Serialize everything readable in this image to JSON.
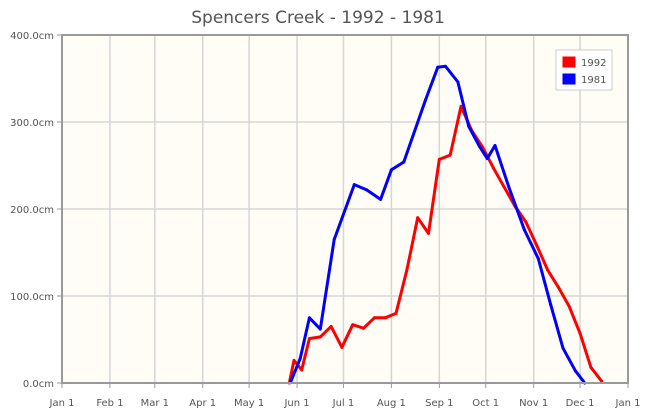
{
  "chart_data": {
    "type": "line",
    "title": "Spencers Creek - 1992 - 1981",
    "xlabel": "",
    "ylabel": "",
    "x_ticks": [
      "Jan 1",
      "Feb 1",
      "Mar 1",
      "Apr 1",
      "May 1",
      "Jun 1",
      "Jul 1",
      "Aug 1",
      "Sep 1",
      "Oct 1",
      "Nov 1",
      "Dec 1",
      "Jan 1"
    ],
    "y_ticks": [
      "0.0cm",
      "100.0cm",
      "200.0cm",
      "300.0cm",
      "400.0cm"
    ],
    "ylim": [
      0,
      400
    ],
    "xlim_days": [
      0,
      366
    ],
    "grid": true,
    "legend_position": "top-right",
    "series": [
      {
        "name": "1992",
        "color": "#ff0000",
        "points": [
          [
            "May 28",
            0
          ],
          [
            "May 31",
            26
          ],
          [
            "Jun 5",
            15
          ],
          [
            "Jun 10",
            51
          ],
          [
            "Jun 17",
            53
          ],
          [
            "Jun 24",
            65
          ],
          [
            "Jul 1",
            41
          ],
          [
            "Jul 8",
            67
          ],
          [
            "Jul 15",
            63
          ],
          [
            "Jul 22",
            75
          ],
          [
            "Jul 29",
            75
          ],
          [
            "Aug 5",
            80
          ],
          [
            "Aug 12",
            130
          ],
          [
            "Aug 19",
            190
          ],
          [
            "Aug 26",
            172
          ],
          [
            "Sep 2",
            257
          ],
          [
            "Sep 9",
            262
          ],
          [
            "Sep 16",
            318
          ],
          [
            "Sep 23",
            290
          ],
          [
            "Sep 30",
            271
          ],
          [
            "Oct 7",
            247
          ],
          [
            "Oct 14",
            225
          ],
          [
            "Oct 21",
            203
          ],
          [
            "Oct 28",
            185
          ],
          [
            "Nov 4",
            158
          ],
          [
            "Nov 11",
            130
          ],
          [
            "Nov 18",
            110
          ],
          [
            "Nov 25",
            88
          ],
          [
            "Dec 2",
            57
          ],
          [
            "Dec 9",
            18
          ],
          [
            "Dec 16",
            2
          ]
        ]
      },
      {
        "name": "1981",
        "color": "#0000ff",
        "points": [
          [
            "May 29",
            2
          ],
          [
            "Jun 4",
            28
          ],
          [
            "Jun 10",
            75
          ],
          [
            "Jun 17",
            62
          ],
          [
            "Jun 26",
            165
          ],
          [
            "Jul 9",
            228
          ],
          [
            "Jul 17",
            222
          ],
          [
            "Jul 26",
            211
          ],
          [
            "Aug 2",
            245
          ],
          [
            "Aug 10",
            254
          ],
          [
            "Aug 24",
            325
          ],
          [
            "Sep 1",
            363
          ],
          [
            "Sep 6",
            364
          ],
          [
            "Sep 14",
            346
          ],
          [
            "Sep 21",
            295
          ],
          [
            "Sep 28",
            272
          ],
          [
            "Oct 3",
            258
          ],
          [
            "Oct 8",
            273
          ],
          [
            "Oct 17",
            225
          ],
          [
            "Oct 27",
            176
          ],
          [
            "Nov 5",
            143
          ],
          [
            "Nov 13",
            90
          ],
          [
            "Nov 21",
            40
          ],
          [
            "Nov 29",
            14
          ],
          [
            "Dec 5",
            0
          ]
        ]
      }
    ]
  }
}
